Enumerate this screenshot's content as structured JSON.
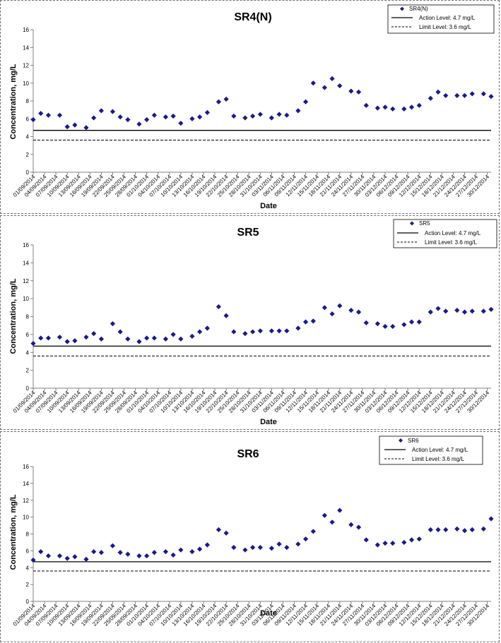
{
  "chart_data": [
    {
      "type": "scatter",
      "title": "SR4(N)",
      "xlabel": "Date",
      "ylabel": "Concentration, mg/L",
      "ylim": [
        0,
        16
      ],
      "yticks": [
        0,
        2,
        4,
        6,
        8,
        10,
        12,
        14,
        16
      ],
      "xlim": [
        "01/09/2014",
        "31/12/2014"
      ],
      "xtick_labels": [
        "01/09/2014",
        "04/09/2014",
        "07/09/2014",
        "10/09/2014",
        "13/09/2014",
        "16/09/2014",
        "19/09/2014",
        "22/09/2014",
        "25/09/2014",
        "28/09/2014",
        "01/10/2014",
        "04/10/2014",
        "07/10/2014",
        "10/10/2014",
        "13/10/2014",
        "16/10/2014",
        "19/10/2014",
        "22/10/2014",
        "25/10/2014",
        "28/10/2014",
        "31/10/2014",
        "03/11/2014",
        "06/11/2014",
        "09/11/2014",
        "12/11/2014",
        "15/11/2014",
        "18/11/2014",
        "21/11/2014",
        "24/11/2014",
        "27/11/2014",
        "30/11/2014",
        "03/12/2014",
        "06/12/2014",
        "09/12/2014",
        "12/12/2014",
        "15/12/2014",
        "18/12/2014",
        "21/12/2014",
        "24/12/2014",
        "27/12/2014",
        "30/12/2014"
      ],
      "legend_position": "top-right",
      "grid": false,
      "series": [
        {
          "name": "SR4(N)",
          "color": "#1a1a8c",
          "marker": "diamond",
          "x": [
            "01/09/2014",
            "03/09/2014",
            "05/09/2014",
            "08/09/2014",
            "10/09/2014",
            "12/09/2014",
            "15/09/2014",
            "17/09/2014",
            "19/09/2014",
            "22/09/2014",
            "24/09/2014",
            "26/09/2014",
            "29/09/2014",
            "01/10/2014",
            "03/10/2014",
            "06/10/2014",
            "08/10/2014",
            "10/10/2014",
            "13/10/2014",
            "15/10/2014",
            "17/10/2014",
            "20/10/2014",
            "22/10/2014",
            "24/10/2014",
            "27/10/2014",
            "29/10/2014",
            "31/10/2014",
            "03/11/2014",
            "05/11/2014",
            "07/11/2014",
            "10/11/2014",
            "12/11/2014",
            "14/11/2014",
            "17/11/2014",
            "19/11/2014",
            "21/11/2014",
            "24/11/2014",
            "26/11/2014",
            "28/11/2014",
            "01/12/2014",
            "03/12/2014",
            "05/12/2014",
            "08/12/2014",
            "10/12/2014",
            "12/12/2014",
            "15/12/2014",
            "17/12/2014",
            "19/12/2014",
            "22/12/2014",
            "24/12/2014",
            "26/12/2014",
            "29/12/2014",
            "31/12/2014"
          ],
          "y": [
            5.9,
            6.6,
            6.4,
            6.4,
            5.1,
            5.3,
            5.0,
            6.1,
            6.9,
            6.8,
            6.2,
            5.9,
            5.4,
            5.9,
            6.4,
            6.2,
            6.3,
            5.5,
            6.0,
            6.2,
            6.7,
            7.9,
            8.2,
            6.3,
            6.1,
            6.3,
            6.5,
            6.1,
            6.5,
            6.4,
            6.9,
            7.9,
            10.0,
            9.5,
            10.5,
            9.7,
            9.1,
            9.0,
            7.5,
            7.2,
            7.3,
            7.1,
            7.1,
            7.3,
            7.5,
            8.3,
            9.0,
            8.6,
            8.6,
            8.6,
            8.8,
            8.8,
            8.5
          ]
        },
        {
          "name": "Action Level: 4.7 mg/L",
          "value": 4.7,
          "style": "solid"
        },
        {
          "name": "Limit Level: 3.6 mg/L",
          "value": 3.6,
          "style": "dashed"
        }
      ]
    },
    {
      "type": "scatter",
      "title": "SR5",
      "xlabel": "Date",
      "ylabel": "Concentration, mg/L",
      "ylim": [
        0,
        16
      ],
      "yticks": [
        0,
        2,
        4,
        6,
        8,
        10,
        12,
        14,
        16
      ],
      "xlim": [
        "01/09/2014",
        "31/12/2014"
      ],
      "xtick_labels": [
        "01/09/2014",
        "04/09/2014",
        "07/09/2014",
        "10/09/2014",
        "13/09/2014",
        "16/09/2014",
        "19/09/2014",
        "22/09/2014",
        "25/09/2014",
        "28/09/2014",
        "01/10/2014",
        "04/10/2014",
        "07/10/2014",
        "10/10/2014",
        "13/10/2014",
        "16/10/2014",
        "19/10/2014",
        "22/10/2014",
        "25/10/2014",
        "28/10/2014",
        "31/10/2014",
        "03/11/2014",
        "06/11/2014",
        "09/11/2014",
        "12/11/2014",
        "15/11/2014",
        "18/11/2014",
        "21/11/2014",
        "24/11/2014",
        "27/11/2014",
        "30/11/2014",
        "03/12/2014",
        "06/12/2014",
        "09/12/2014",
        "12/12/2014",
        "15/12/2014",
        "18/12/2014",
        "21/12/2014",
        "24/12/2014",
        "27/12/2014",
        "30/12/2014"
      ],
      "legend_position": "top-right",
      "grid": false,
      "series": [
        {
          "name": "SR5",
          "color": "#1a1a8c",
          "marker": "diamond",
          "x": [
            "01/09/2014",
            "03/09/2014",
            "05/09/2014",
            "08/09/2014",
            "10/09/2014",
            "12/09/2014",
            "15/09/2014",
            "17/09/2014",
            "19/09/2014",
            "22/09/2014",
            "24/09/2014",
            "26/09/2014",
            "29/09/2014",
            "01/10/2014",
            "03/10/2014",
            "06/10/2014",
            "08/10/2014",
            "10/10/2014",
            "13/10/2014",
            "15/10/2014",
            "17/10/2014",
            "20/10/2014",
            "22/10/2014",
            "24/10/2014",
            "27/10/2014",
            "29/10/2014",
            "31/10/2014",
            "03/11/2014",
            "05/11/2014",
            "07/11/2014",
            "10/11/2014",
            "12/11/2014",
            "14/11/2014",
            "17/11/2014",
            "19/11/2014",
            "21/11/2014",
            "24/11/2014",
            "26/11/2014",
            "28/11/2014",
            "01/12/2014",
            "03/12/2014",
            "05/12/2014",
            "08/12/2014",
            "10/12/2014",
            "12/12/2014",
            "15/12/2014",
            "17/12/2014",
            "19/12/2014",
            "22/12/2014",
            "24/12/2014",
            "26/12/2014",
            "29/12/2014",
            "31/12/2014"
          ],
          "y": [
            5.0,
            5.6,
            5.6,
            5.7,
            5.2,
            5.3,
            5.7,
            6.1,
            5.5,
            7.2,
            6.3,
            5.5,
            5.2,
            5.6,
            5.6,
            5.5,
            6.0,
            5.5,
            5.8,
            6.3,
            6.7,
            9.1,
            8.1,
            6.3,
            6.1,
            6.3,
            6.4,
            6.4,
            6.4,
            6.4,
            6.7,
            7.4,
            7.5,
            9.0,
            8.3,
            9.2,
            8.7,
            8.5,
            7.3,
            7.2,
            6.9,
            6.9,
            7.1,
            7.4,
            7.4,
            8.5,
            8.9,
            8.6,
            8.7,
            8.5,
            8.6,
            8.6,
            8.8
          ]
        },
        {
          "name": "Action Level: 4.7 mg/L",
          "value": 4.7,
          "style": "solid"
        },
        {
          "name": "Limit Level: 3.6 mg/L",
          "value": 3.6,
          "style": "dashed"
        }
      ]
    },
    {
      "type": "scatter",
      "title": "SR6",
      "xlabel": "Date",
      "ylabel": "Concentration, mg/L",
      "ylim": [
        0,
        16
      ],
      "yticks": [
        0,
        2,
        4,
        6,
        8,
        10,
        12,
        14,
        16
      ],
      "xlim": [
        "01/09/2014",
        "31/12/2014"
      ],
      "xtick_labels": [
        "01/09/2014",
        "04/09/2014",
        "07/09/2014",
        "10/09/2014",
        "13/09/2014",
        "16/09/2014",
        "19/09/2014",
        "22/09/2014",
        "25/09/2014",
        "28/09/2014",
        "01/10/2014",
        "04/10/2014",
        "07/10/2014",
        "10/10/2014",
        "13/10/2014",
        "16/10/2014",
        "19/10/2014",
        "22/10/2014",
        "25/10/2014",
        "28/10/2014",
        "31/10/2014",
        "03/11/2014",
        "06/11/2014",
        "09/11/2014",
        "12/11/2014",
        "15/11/2014",
        "18/11/2014",
        "21/11/2014",
        "24/11/2014",
        "27/11/2014",
        "30/11/2014",
        "03/12/2014",
        "06/12/2014",
        "09/12/2014",
        "12/12/2014",
        "15/12/2014",
        "18/12/2014",
        "21/12/2014",
        "24/12/2014",
        "27/12/2014",
        "30/12/2014"
      ],
      "legend_position": "top-right",
      "grid": false,
      "series": [
        {
          "name": "SR6",
          "color": "#1a1a8c",
          "marker": "diamond",
          "x": [
            "01/09/2014",
            "03/09/2014",
            "05/09/2014",
            "08/09/2014",
            "10/09/2014",
            "12/09/2014",
            "15/09/2014",
            "17/09/2014",
            "19/09/2014",
            "22/09/2014",
            "24/09/2014",
            "26/09/2014",
            "29/09/2014",
            "01/10/2014",
            "03/10/2014",
            "06/10/2014",
            "08/10/2014",
            "10/10/2014",
            "13/10/2014",
            "15/10/2014",
            "17/10/2014",
            "20/10/2014",
            "22/10/2014",
            "24/10/2014",
            "27/10/2014",
            "29/10/2014",
            "31/10/2014",
            "03/11/2014",
            "05/11/2014",
            "07/11/2014",
            "10/11/2014",
            "12/11/2014",
            "14/11/2014",
            "17/11/2014",
            "19/11/2014",
            "21/11/2014",
            "24/11/2014",
            "26/11/2014",
            "28/11/2014",
            "01/12/2014",
            "03/12/2014",
            "05/12/2014",
            "08/12/2014",
            "10/12/2014",
            "12/12/2014",
            "15/12/2014",
            "17/12/2014",
            "19/12/2014",
            "22/12/2014",
            "24/12/2014",
            "26/12/2014",
            "29/12/2014",
            "31/12/2014"
          ],
          "y": [
            4.9,
            5.9,
            5.4,
            5.4,
            5.1,
            5.3,
            5.0,
            5.9,
            5.8,
            6.6,
            5.8,
            5.6,
            5.4,
            5.4,
            5.8,
            5.9,
            5.5,
            6.1,
            5.9,
            6.2,
            6.7,
            8.5,
            8.1,
            6.4,
            6.1,
            6.4,
            6.4,
            6.3,
            6.8,
            6.4,
            6.8,
            7.4,
            8.3,
            10.2,
            9.4,
            10.8,
            9.1,
            8.8,
            7.3,
            6.7,
            6.9,
            6.9,
            7.0,
            7.3,
            7.4,
            8.5,
            8.5,
            8.5,
            8.6,
            8.4,
            8.5,
            8.6,
            9.8
          ]
        },
        {
          "name": "Action Level: 4.7 mg/L",
          "value": 4.7,
          "style": "solid"
        },
        {
          "name": "Limit Level: 3.6 mg/L",
          "value": 3.6,
          "style": "dashed"
        }
      ]
    }
  ]
}
